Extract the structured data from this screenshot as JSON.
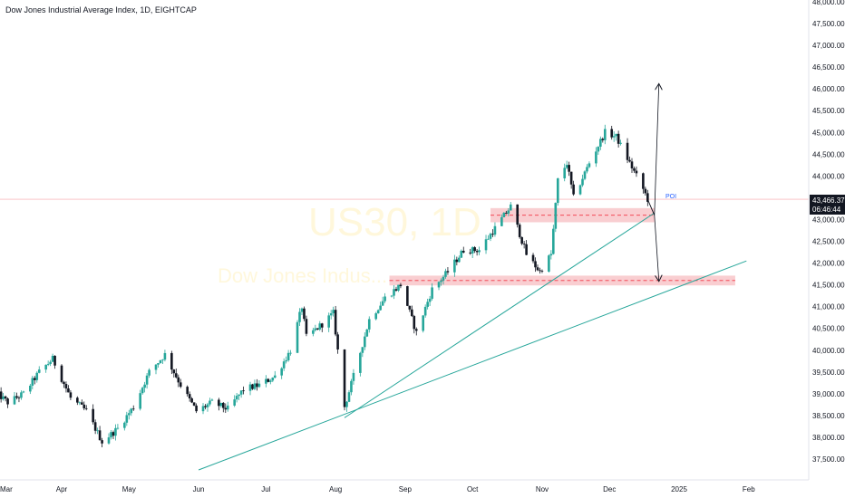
{
  "title": "Dow Jones Industrial Average Index, 1D, EIGHTCAP",
  "watermark": {
    "symbol": "US30, 1D",
    "name": "Dow Jones Indus..."
  },
  "price_label": {
    "value": "43,466.37",
    "countdown": "06:46:44"
  },
  "annotation": {
    "poi": "POI"
  },
  "colors": {
    "up": "#26a69a",
    "down": "#131722",
    "zone": "#f8c6c9",
    "trend": "#26a69a",
    "price_line": "#f23645"
  },
  "chart_data": {
    "type": "candlestick",
    "title": "Dow Jones Industrial Average Index, 1D, EIGHTCAP",
    "xlabel": "",
    "ylabel": "",
    "ylim": [
      37200,
      48100
    ],
    "x_tick_labels": [
      "Mar",
      "Apr",
      "May",
      "Jun",
      "Jul",
      "Aug",
      "Sep",
      "Oct",
      "Nov",
      "Dec",
      "2025",
      "Feb"
    ],
    "y_tick_labels": [
      "37,500.00",
      "38,000.00",
      "38,500.00",
      "39,000.00",
      "39,500.00",
      "40,000.00",
      "40,500.00",
      "41,000.00",
      "41,500.00",
      "42,000.00",
      "42,500.00",
      "43,000.00",
      "43,500.00",
      "44,000.00",
      "44,500.00",
      "45,000.00",
      "45,500.00",
      "46,000.00",
      "46,500.00",
      "47,000.00",
      "47,500.00",
      "48,000.00"
    ],
    "y_ticks": [
      37500,
      38000,
      38500,
      39000,
      39500,
      40000,
      40500,
      41000,
      41500,
      42000,
      42500,
      43000,
      43500,
      44000,
      44500,
      45000,
      45500,
      46000,
      46500,
      47000,
      47500,
      48000
    ],
    "last_price": 43466.37,
    "close_path": [
      [
        "2024-03-01",
        39100
      ],
      [
        "2024-03-08",
        38800
      ],
      [
        "2024-03-15",
        39000
      ],
      [
        "2024-03-22",
        39500
      ],
      [
        "2024-03-28",
        39800
      ],
      [
        "2024-04-05",
        38900
      ],
      [
        "2024-04-12",
        38600
      ],
      [
        "2024-04-19",
        37900
      ],
      [
        "2024-04-26",
        38200
      ],
      [
        "2024-05-03",
        38700
      ],
      [
        "2024-05-10",
        39500
      ],
      [
        "2024-05-17",
        39900
      ],
      [
        "2024-05-24",
        39200
      ],
      [
        "2024-05-31",
        38600
      ],
      [
        "2024-06-07",
        38800
      ],
      [
        "2024-06-14",
        38650
      ],
      [
        "2024-06-21",
        39100
      ],
      [
        "2024-06-28",
        39200
      ],
      [
        "2024-07-05",
        39400
      ],
      [
        "2024-07-12",
        40000
      ],
      [
        "2024-07-17",
        41000
      ],
      [
        "2024-07-19",
        40300
      ],
      [
        "2024-07-26",
        40600
      ],
      [
        "2024-07-31",
        40850
      ],
      [
        "2024-08-05",
        38700
      ],
      [
        "2024-08-09",
        39400
      ],
      [
        "2024-08-16",
        40700
      ],
      [
        "2024-08-23",
        41200
      ],
      [
        "2024-08-30",
        41500
      ],
      [
        "2024-09-06",
        40400
      ],
      [
        "2024-09-13",
        41400
      ],
      [
        "2024-09-20",
        41800
      ],
      [
        "2024-09-27",
        42300
      ],
      [
        "2024-10-04",
        42300
      ],
      [
        "2024-10-11",
        42800
      ],
      [
        "2024-10-18",
        43300
      ],
      [
        "2024-10-25",
        42200
      ],
      [
        "2024-10-31",
        41800
      ],
      [
        "2024-11-05",
        42200
      ],
      [
        "2024-11-08",
        43900
      ],
      [
        "2024-11-12",
        44300
      ],
      [
        "2024-11-15",
        43500
      ],
      [
        "2024-11-22",
        44300
      ],
      [
        "2024-11-29",
        45000
      ],
      [
        "2024-12-04",
        44900
      ],
      [
        "2024-12-10",
        44300
      ],
      [
        "2024-12-16",
        43700
      ],
      [
        "2024-12-18",
        43466
      ]
    ],
    "zones": [
      {
        "from": "2024-10-09",
        "to": "2024-12-21",
        "low": 43000,
        "high": 43200,
        "mid": 43100
      },
      {
        "from": "2024-08-25",
        "to": "2025-01-26",
        "low": 41550,
        "high": 41650,
        "mid": 41600
      }
    ],
    "trendlines": [
      {
        "from": [
          "2024-06-01",
          37250
        ],
        "to": [
          "2025-01-31",
          42050
        ]
      },
      {
        "from": [
          "2024-08-05",
          38450
        ],
        "to": [
          "2024-12-21",
          43150
        ]
      }
    ],
    "projections": [
      {
        "points": [
          [
            "2024-12-18",
            43466
          ],
          [
            "2024-12-21",
            43100
          ],
          [
            "2024-12-23",
            46100
          ]
        ]
      },
      {
        "points": [
          [
            "2024-12-18",
            43466
          ],
          [
            "2024-12-21",
            43100
          ],
          [
            "2024-12-23",
            41600
          ]
        ]
      }
    ]
  }
}
